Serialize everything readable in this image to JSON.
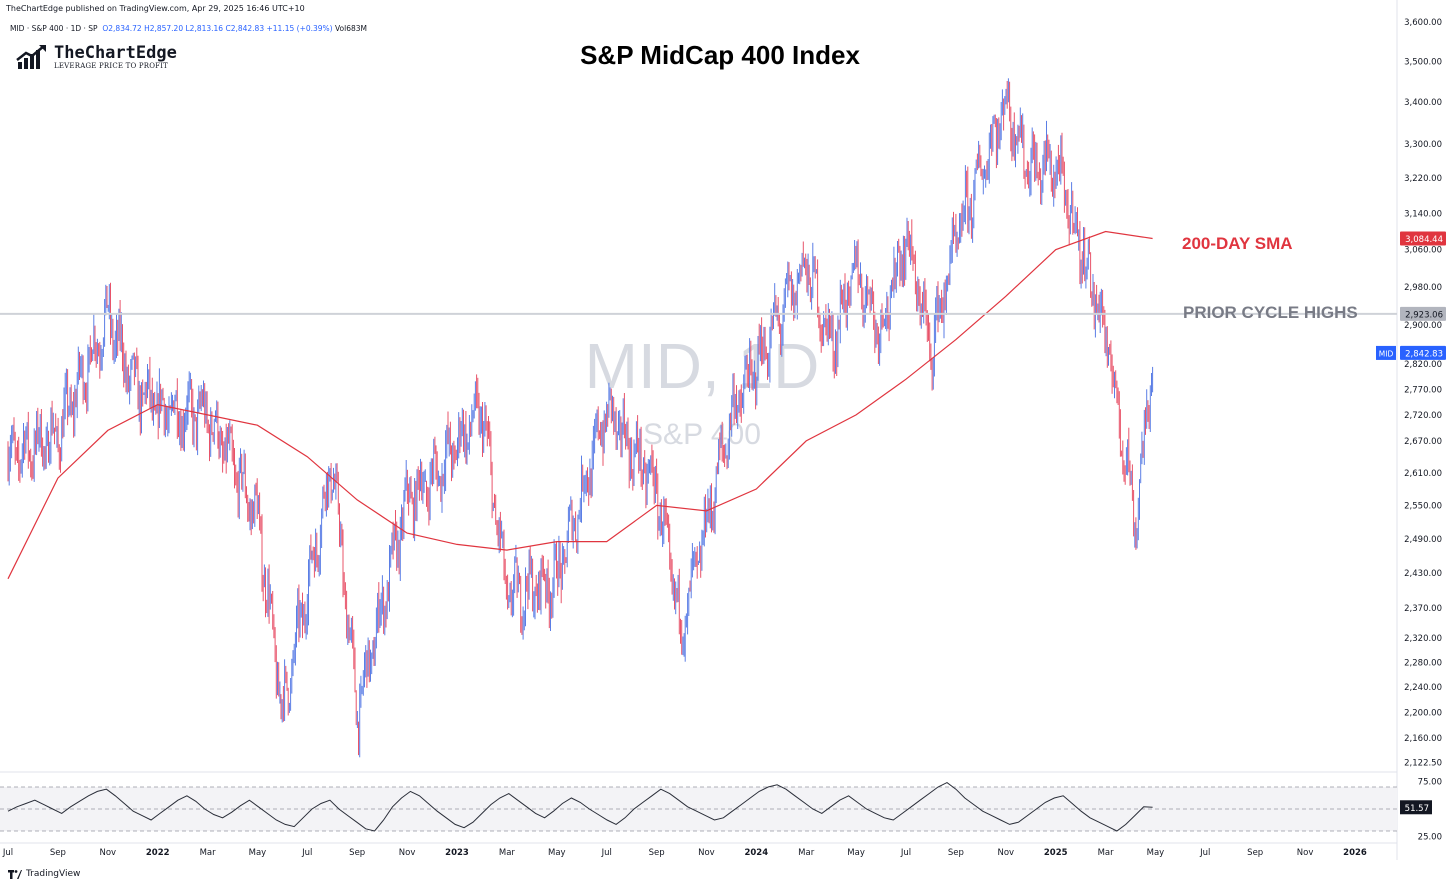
{
  "header": {
    "attribution": "TheChartEdge published on TradingView.com, Apr 29, 2025 16:46 UTC+10",
    "symbol_line": "MID · S&P 400 · 1D · SP",
    "open": "O2,834.72",
    "high": "H2,857.20",
    "low": "L2,813.16",
    "close": "C2,842.83",
    "change": "+11.15 (+0.39%)",
    "volume": "Vol683M"
  },
  "brand": {
    "name": "TheChartEdge",
    "tagline": "LEVERAGE PRICE TO PROFIT"
  },
  "footer": {
    "label": "TradingView",
    "logo_icon": "tradingview-logo-icon"
  },
  "colors": {
    "up": "#5b7ee5",
    "down": "#e8546a",
    "sma": "#e0353f",
    "line": "#cfd2d8",
    "watermark": "#d1d4dc"
  },
  "chart_data": {
    "type": "candlestick",
    "title": "S&P MidCap 400 Index",
    "watermark": {
      "symbol": "MID, 1D",
      "name": "S&P 400"
    },
    "x_ticks": [
      "Jul",
      "Sep",
      "Nov",
      "2022",
      "Mar",
      "May",
      "Jul",
      "Sep",
      "Nov",
      "2023",
      "Mar",
      "May",
      "Jul",
      "Sep",
      "Nov",
      "2024",
      "Mar",
      "May",
      "Jul",
      "Sep",
      "Nov",
      "2025",
      "Mar",
      "May",
      "Jul",
      "Sep",
      "Nov",
      "2026"
    ],
    "y_ticks": [
      "3,600.00",
      "3,500.00",
      "3,400.00",
      "3,300.00",
      "3,220.00",
      "3,140.00",
      "3,060.00",
      "2,980.00",
      "2,900.00",
      "2,820.00",
      "2,770.00",
      "2,720.00",
      "2,670.00",
      "2,610.00",
      "2,550.00",
      "2,490.00",
      "2,430.00",
      "2,370.00",
      "2,320.00",
      "2,280.00",
      "2,240.00",
      "2,200.00",
      "2,160.00",
      "2,122.50"
    ],
    "y_log_range": [
      2110,
      3620
    ],
    "price_anchors": [
      {
        "date": "2021-07",
        "price": 2640
      },
      {
        "date": "2021-09",
        "price": 2680
      },
      {
        "date": "2021-11",
        "price": 2920
      },
      {
        "date": "2021-12",
        "price": 2780
      },
      {
        "date": "2022-01",
        "price": 2730
      },
      {
        "date": "2022-03",
        "price": 2720
      },
      {
        "date": "2022-05",
        "price": 2530
      },
      {
        "date": "2022-06",
        "price": 2200
      },
      {
        "date": "2022-08",
        "price": 2630
      },
      {
        "date": "2022-09",
        "price": 2200
      },
      {
        "date": "2022-11",
        "price": 2560
      },
      {
        "date": "2022-12",
        "price": 2600
      },
      {
        "date": "2023-02",
        "price": 2730
      },
      {
        "date": "2023-03",
        "price": 2390
      },
      {
        "date": "2023-05",
        "price": 2420
      },
      {
        "date": "2023-07",
        "price": 2730
      },
      {
        "date": "2023-09",
        "price": 2580
      },
      {
        "date": "2023-10",
        "price": 2330
      },
      {
        "date": "2023-12",
        "price": 2720
      },
      {
        "date": "2024-03",
        "price": 3030
      },
      {
        "date": "2024-04",
        "price": 2860
      },
      {
        "date": "2024-05",
        "price": 3020
      },
      {
        "date": "2024-06",
        "price": 2890
      },
      {
        "date": "2024-07",
        "price": 3090
      },
      {
        "date": "2024-08",
        "price": 2850
      },
      {
        "date": "2024-09",
        "price": 3080
      },
      {
        "date": "2024-11",
        "price": 3400
      },
      {
        "date": "2024-12",
        "price": 3240
      },
      {
        "date": "2025-01",
        "price": 3250
      },
      {
        "date": "2025-02",
        "price": 3070
      },
      {
        "date": "2025-03",
        "price": 2880
      },
      {
        "date": "2025-04-08",
        "price": 2520
      },
      {
        "date": "2025-04-28",
        "price": 2843
      }
    ],
    "sma_200": [
      {
        "date": "2021-07",
        "value": 2420
      },
      {
        "date": "2021-09",
        "value": 2600
      },
      {
        "date": "2021-11",
        "value": 2690
      },
      {
        "date": "2022-01",
        "value": 2740
      },
      {
        "date": "2022-03",
        "value": 2720
      },
      {
        "date": "2022-05",
        "value": 2700
      },
      {
        "date": "2022-07",
        "value": 2640
      },
      {
        "date": "2022-09",
        "value": 2560
      },
      {
        "date": "2022-11",
        "value": 2500
      },
      {
        "date": "2023-01",
        "value": 2480
      },
      {
        "date": "2023-03",
        "value": 2470
      },
      {
        "date": "2023-05",
        "value": 2485
      },
      {
        "date": "2023-07",
        "value": 2485
      },
      {
        "date": "2023-09",
        "value": 2550
      },
      {
        "date": "2023-11",
        "value": 2540
      },
      {
        "date": "2024-01",
        "value": 2580
      },
      {
        "date": "2024-03",
        "value": 2670
      },
      {
        "date": "2024-05",
        "value": 2720
      },
      {
        "date": "2024-07",
        "value": 2790
      },
      {
        "date": "2024-09",
        "value": 2870
      },
      {
        "date": "2024-11",
        "value": 2960
      },
      {
        "date": "2025-01",
        "value": 3060
      },
      {
        "date": "2025-03",
        "value": 3100
      },
      {
        "date": "2025-04-28",
        "value": 3084.44
      }
    ],
    "horizontal_line": {
      "label": "PRIOR CYCLE HIGHS",
      "value": 2923.06,
      "value_label": "2,923.06"
    },
    "sma_label": {
      "text": "200-DAY SMA",
      "value_label": "3,084.44"
    },
    "last_price": {
      "symbol": "MID",
      "value": 2842.83,
      "value_label": "2,842.83"
    },
    "rsi": {
      "ticks": [
        "75.00",
        "25.00"
      ],
      "value_label": "51.57",
      "levels": [
        70,
        50,
        30
      ],
      "series": [
        48,
        52,
        55,
        58,
        54,
        50,
        46,
        52,
        57,
        62,
        66,
        68,
        62,
        55,
        48,
        44,
        40,
        46,
        52,
        58,
        62,
        57,
        50,
        45,
        42,
        47,
        53,
        58,
        52,
        46,
        40,
        36,
        34,
        42,
        50,
        55,
        58,
        50,
        44,
        38,
        32,
        30,
        40,
        52,
        60,
        66,
        62,
        55,
        48,
        42,
        36,
        33,
        38,
        46,
        54,
        60,
        64,
        58,
        52,
        46,
        42,
        48,
        55,
        60,
        56,
        50,
        45,
        40,
        36,
        42,
        50,
        56,
        62,
        68,
        64,
        58,
        52,
        48,
        44,
        40,
        42,
        48,
        54,
        60,
        66,
        70,
        72,
        68,
        62,
        56,
        50,
        46,
        52,
        58,
        62,
        56,
        50,
        46,
        42,
        40,
        46,
        52,
        58,
        64,
        70,
        74,
        68,
        60,
        54,
        48,
        44,
        40,
        36,
        38,
        44,
        50,
        56,
        60,
        62,
        55,
        48,
        42,
        38,
        34,
        30,
        36,
        44,
        52,
        51.57
      ]
    }
  },
  "annotations": {
    "sma": "200-DAY SMA",
    "prior_highs": "PRIOR CYCLE HIGHS"
  }
}
